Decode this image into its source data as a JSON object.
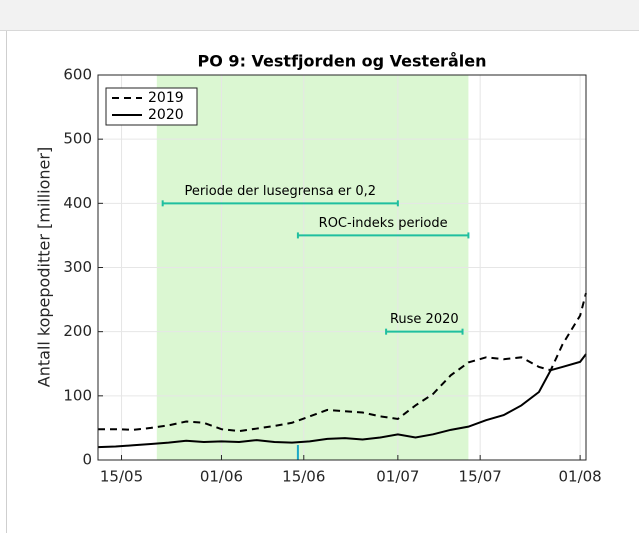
{
  "chart_data": {
    "type": "line",
    "title": "PO 9: Vestfjorden og Vesterålen",
    "ylabel": "Antall kopepoditter [millioner]",
    "x": [
      "11/05",
      "14/05",
      "17/05",
      "20/05",
      "23/05",
      "26/05",
      "29/05",
      "01/06",
      "04/06",
      "07/06",
      "10/06",
      "13/06",
      "16/06",
      "19/06",
      "22/06",
      "25/06",
      "28/06",
      "01/07",
      "04/07",
      "07/07",
      "10/07",
      "13/07",
      "16/07",
      "19/07",
      "22/07",
      "25/07",
      "27/07",
      "29/07",
      "01/08",
      "02/08"
    ],
    "series": [
      {
        "name": "2019",
        "color": "#000000",
        "dashed": true,
        "values": [
          48,
          48,
          47,
          50,
          54,
          60,
          58,
          48,
          45,
          49,
          53,
          58,
          68,
          78,
          76,
          74,
          68,
          64,
          85,
          103,
          132,
          152,
          160,
          157,
          160,
          145,
          140,
          180,
          225,
          260
        ]
      },
      {
        "name": "2020",
        "color": "#000000",
        "dashed": false,
        "values": [
          20,
          21,
          23,
          25,
          27,
          30,
          28,
          29,
          28,
          31,
          28,
          27,
          29,
          33,
          34,
          32,
          35,
          40,
          35,
          40,
          47,
          52,
          62,
          70,
          85,
          106,
          140,
          145,
          153,
          165
        ]
      }
    ],
    "xlim": [
      "11/05",
      "02/08"
    ],
    "xticks": [
      "15/05",
      "01/06",
      "15/06",
      "01/07",
      "15/07",
      "01/08"
    ],
    "ylim": [
      0,
      600
    ],
    "yticks": [
      0,
      100,
      200,
      300,
      400,
      500,
      600
    ],
    "grid": true,
    "legend": "upper left",
    "shade": {
      "xlim": [
        "21/05",
        "13/07"
      ],
      "color": "#dbf7d2"
    },
    "annotations": [
      {
        "text": "Periode der lusegrensa er 0,2",
        "x": [
          "22/05",
          "01/07"
        ],
        "y": 400,
        "color": "#1fbf9f"
      },
      {
        "text": "ROC-indeks periode",
        "x": [
          "14/06",
          "13/07"
        ],
        "y": 350,
        "color": "#1fbf9f"
      },
      {
        "text": "Ruse 2020",
        "x": [
          "29/06",
          "12/07"
        ],
        "y": 200,
        "color": "#1fbf9f"
      }
    ],
    "marker": {
      "x": "14/06",
      "color": "#1aa8c8"
    }
  }
}
